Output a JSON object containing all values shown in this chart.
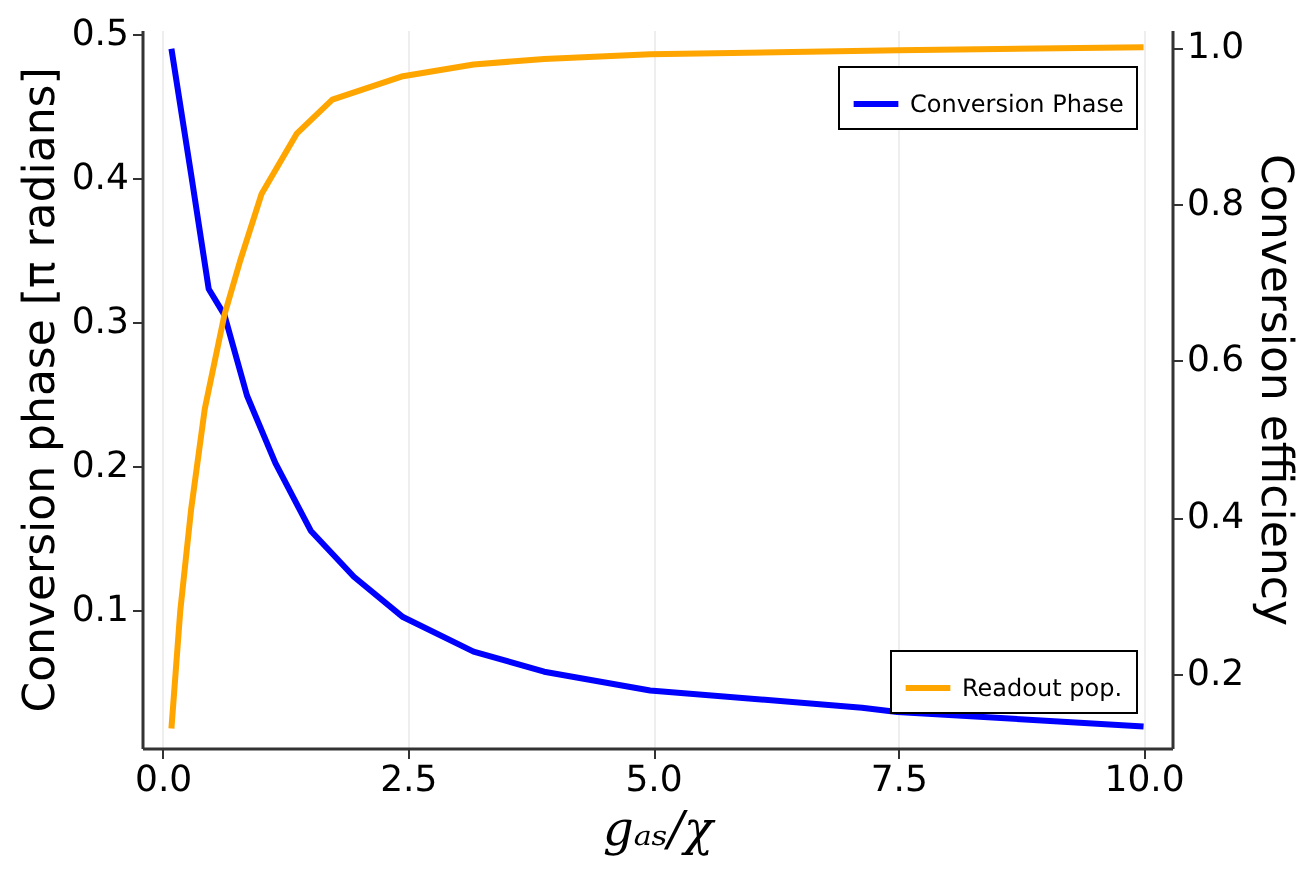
{
  "chart_data": {
    "type": "line",
    "xlabel": "gₐₛ/χ",
    "ylabel": "Conversion phase [π radians]",
    "y2label": "Conversion efficiency",
    "xlim": [
      -0.21,
      10.29
    ],
    "xticks": [
      {
        "value": 0,
        "label": "0.0"
      },
      2.5,
      {
        "value": 5,
        "label": "5.0"
      },
      7.5,
      {
        "value": 10,
        "label": "10.0"
      }
    ],
    "ylim": [
      0.004,
      0.503
    ],
    "yticks": [
      0.1,
      0.2,
      0.3,
      0.4,
      0.5
    ],
    "y2lim": [
      0.105,
      1.022
    ],
    "y2ticks": [
      0.2,
      0.4,
      0.6,
      0.8,
      {
        "value": 1,
        "label": "1.0"
      }
    ],
    "grid": "x",
    "legend": "right",
    "line_style": "solid",
    "marker": "none",
    "series": [
      {
        "name": "Conversion Phase",
        "color": "#0000ff",
        "x": [
          0.09,
          0.29,
          0.47,
          0.63,
          0.86,
          1.15,
          1.51,
          1.95,
          2.45,
          3.17,
          3.89,
          4.97,
          7.13,
          7.49,
          10.0
        ],
        "values": [
          0.49,
          0.403,
          0.323,
          0.305,
          0.249,
          0.202,
          0.155,
          0.123,
          0.095,
          0.071,
          0.057,
          0.044,
          0.032,
          0.029,
          0.019
        ]
      },
      {
        "name": "Readout pop.",
        "color": "#ffa500",
        "axis": "y2",
        "x": [
          0.09,
          0.18,
          0.29,
          0.43,
          0.63,
          0.79,
          1.01,
          1.37,
          1.73,
          2.45,
          3.17,
          3.89,
          4.97,
          7.5,
          10.0
        ],
        "values": [
          0.13,
          0.28,
          0.409,
          0.538,
          0.658,
          0.727,
          0.813,
          0.89,
          0.933,
          0.963,
          0.978,
          0.985,
          0.991,
          0.996,
          1.0
        ]
      }
    ]
  }
}
